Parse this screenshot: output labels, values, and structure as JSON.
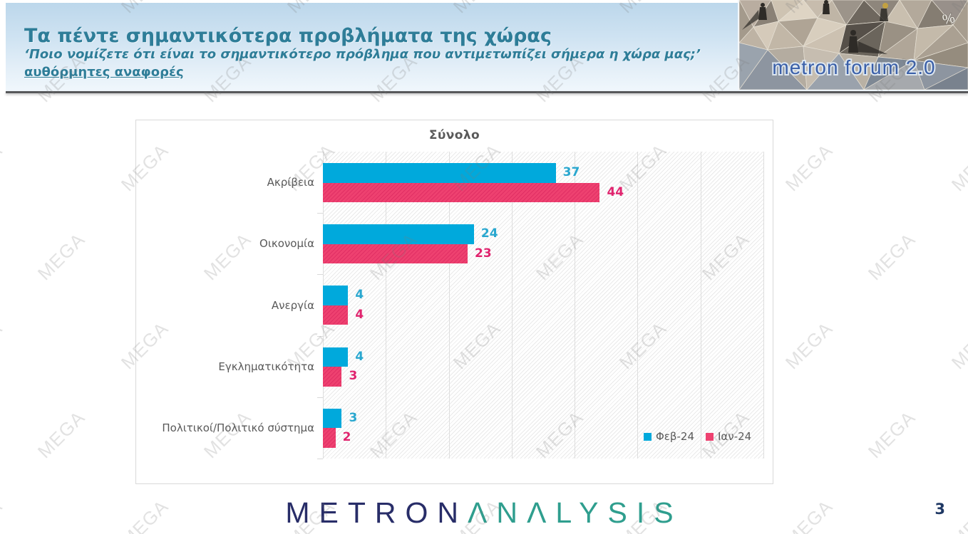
{
  "header": {
    "title": "Τα πέντε σημαντικότερα προβλήματα της χώρας",
    "subtitle": "‘Ποιο νομίζετε ότι είναι το σημαντικότερο πρόβλημα που αντιμετωπίζει σήμερα η χώρα μας;’",
    "note": "αυθόρμητες αναφορές",
    "text_color": "#2e7d98"
  },
  "corner_logo": {
    "brand": "metron forum 2.0",
    "percent": "%",
    "brand_color": "#3a5fa8"
  },
  "chart_data": {
    "type": "bar",
    "orientation": "horizontal",
    "title": "Σύνολο",
    "categories": [
      "Ακρίβεια",
      "Οικονομία",
      "Ανεργία",
      "Εγκληματικότητα",
      "Πολιτικοί/Πολιτικό σύστημα"
    ],
    "series": [
      {
        "name": "Φεβ-24",
        "color": "#00a9dc",
        "label_color": "#29a7cf",
        "values": [
          37,
          24,
          4,
          4,
          3
        ]
      },
      {
        "name": "Ιαν-24",
        "color": "#ee4170",
        "label_color": "#e0246e",
        "values": [
          44,
          23,
          4,
          3,
          2
        ]
      }
    ],
    "xlim": [
      0,
      70
    ],
    "grid_step": 10,
    "grid": true,
    "legend_position": "inside-bottom-right"
  },
  "footer": {
    "brand_part1": "METRON",
    "brand_part2": "ΛNΛLYSIS",
    "page_number": "3"
  },
  "watermark": {
    "text": "MEGA"
  }
}
